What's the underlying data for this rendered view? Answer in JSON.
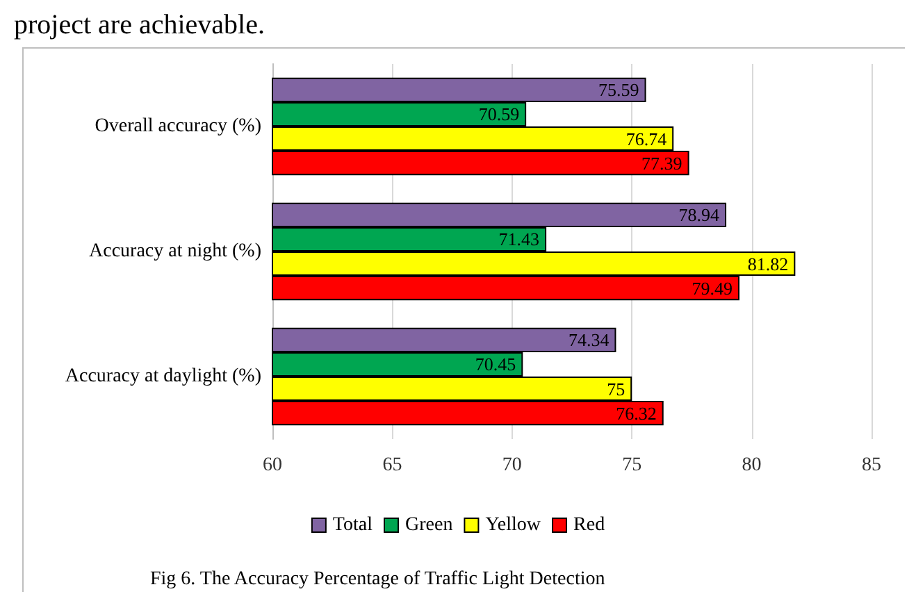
{
  "chart_data": {
    "type": "bar",
    "orientation": "horizontal",
    "categories": [
      "Overall accuracy (%)",
      "Accuracy at night (%)",
      "Accuracy at daylight (%)"
    ],
    "series": [
      {
        "name": "Total",
        "color": "#8064a2",
        "values": [
          75.59,
          78.94,
          74.34
        ]
      },
      {
        "name": "Green",
        "color": "#00a651",
        "values": [
          70.59,
          71.43,
          70.45
        ]
      },
      {
        "name": "Yellow",
        "color": "#ffff00",
        "values": [
          76.74,
          81.82,
          75
        ]
      },
      {
        "name": "Red",
        "color": "#ff0000",
        "values": [
          77.39,
          79.49,
          76.32
        ]
      }
    ],
    "xlim": [
      60,
      85
    ],
    "xticks": [
      60,
      65,
      70,
      75,
      80,
      85
    ],
    "grid": "x",
    "legend": "bottom",
    "data_labels": true,
    "annotations": [
      "project are achievable.",
      "Fig 6. The Accuracy Percentage of Traffic Light Detection"
    ]
  }
}
